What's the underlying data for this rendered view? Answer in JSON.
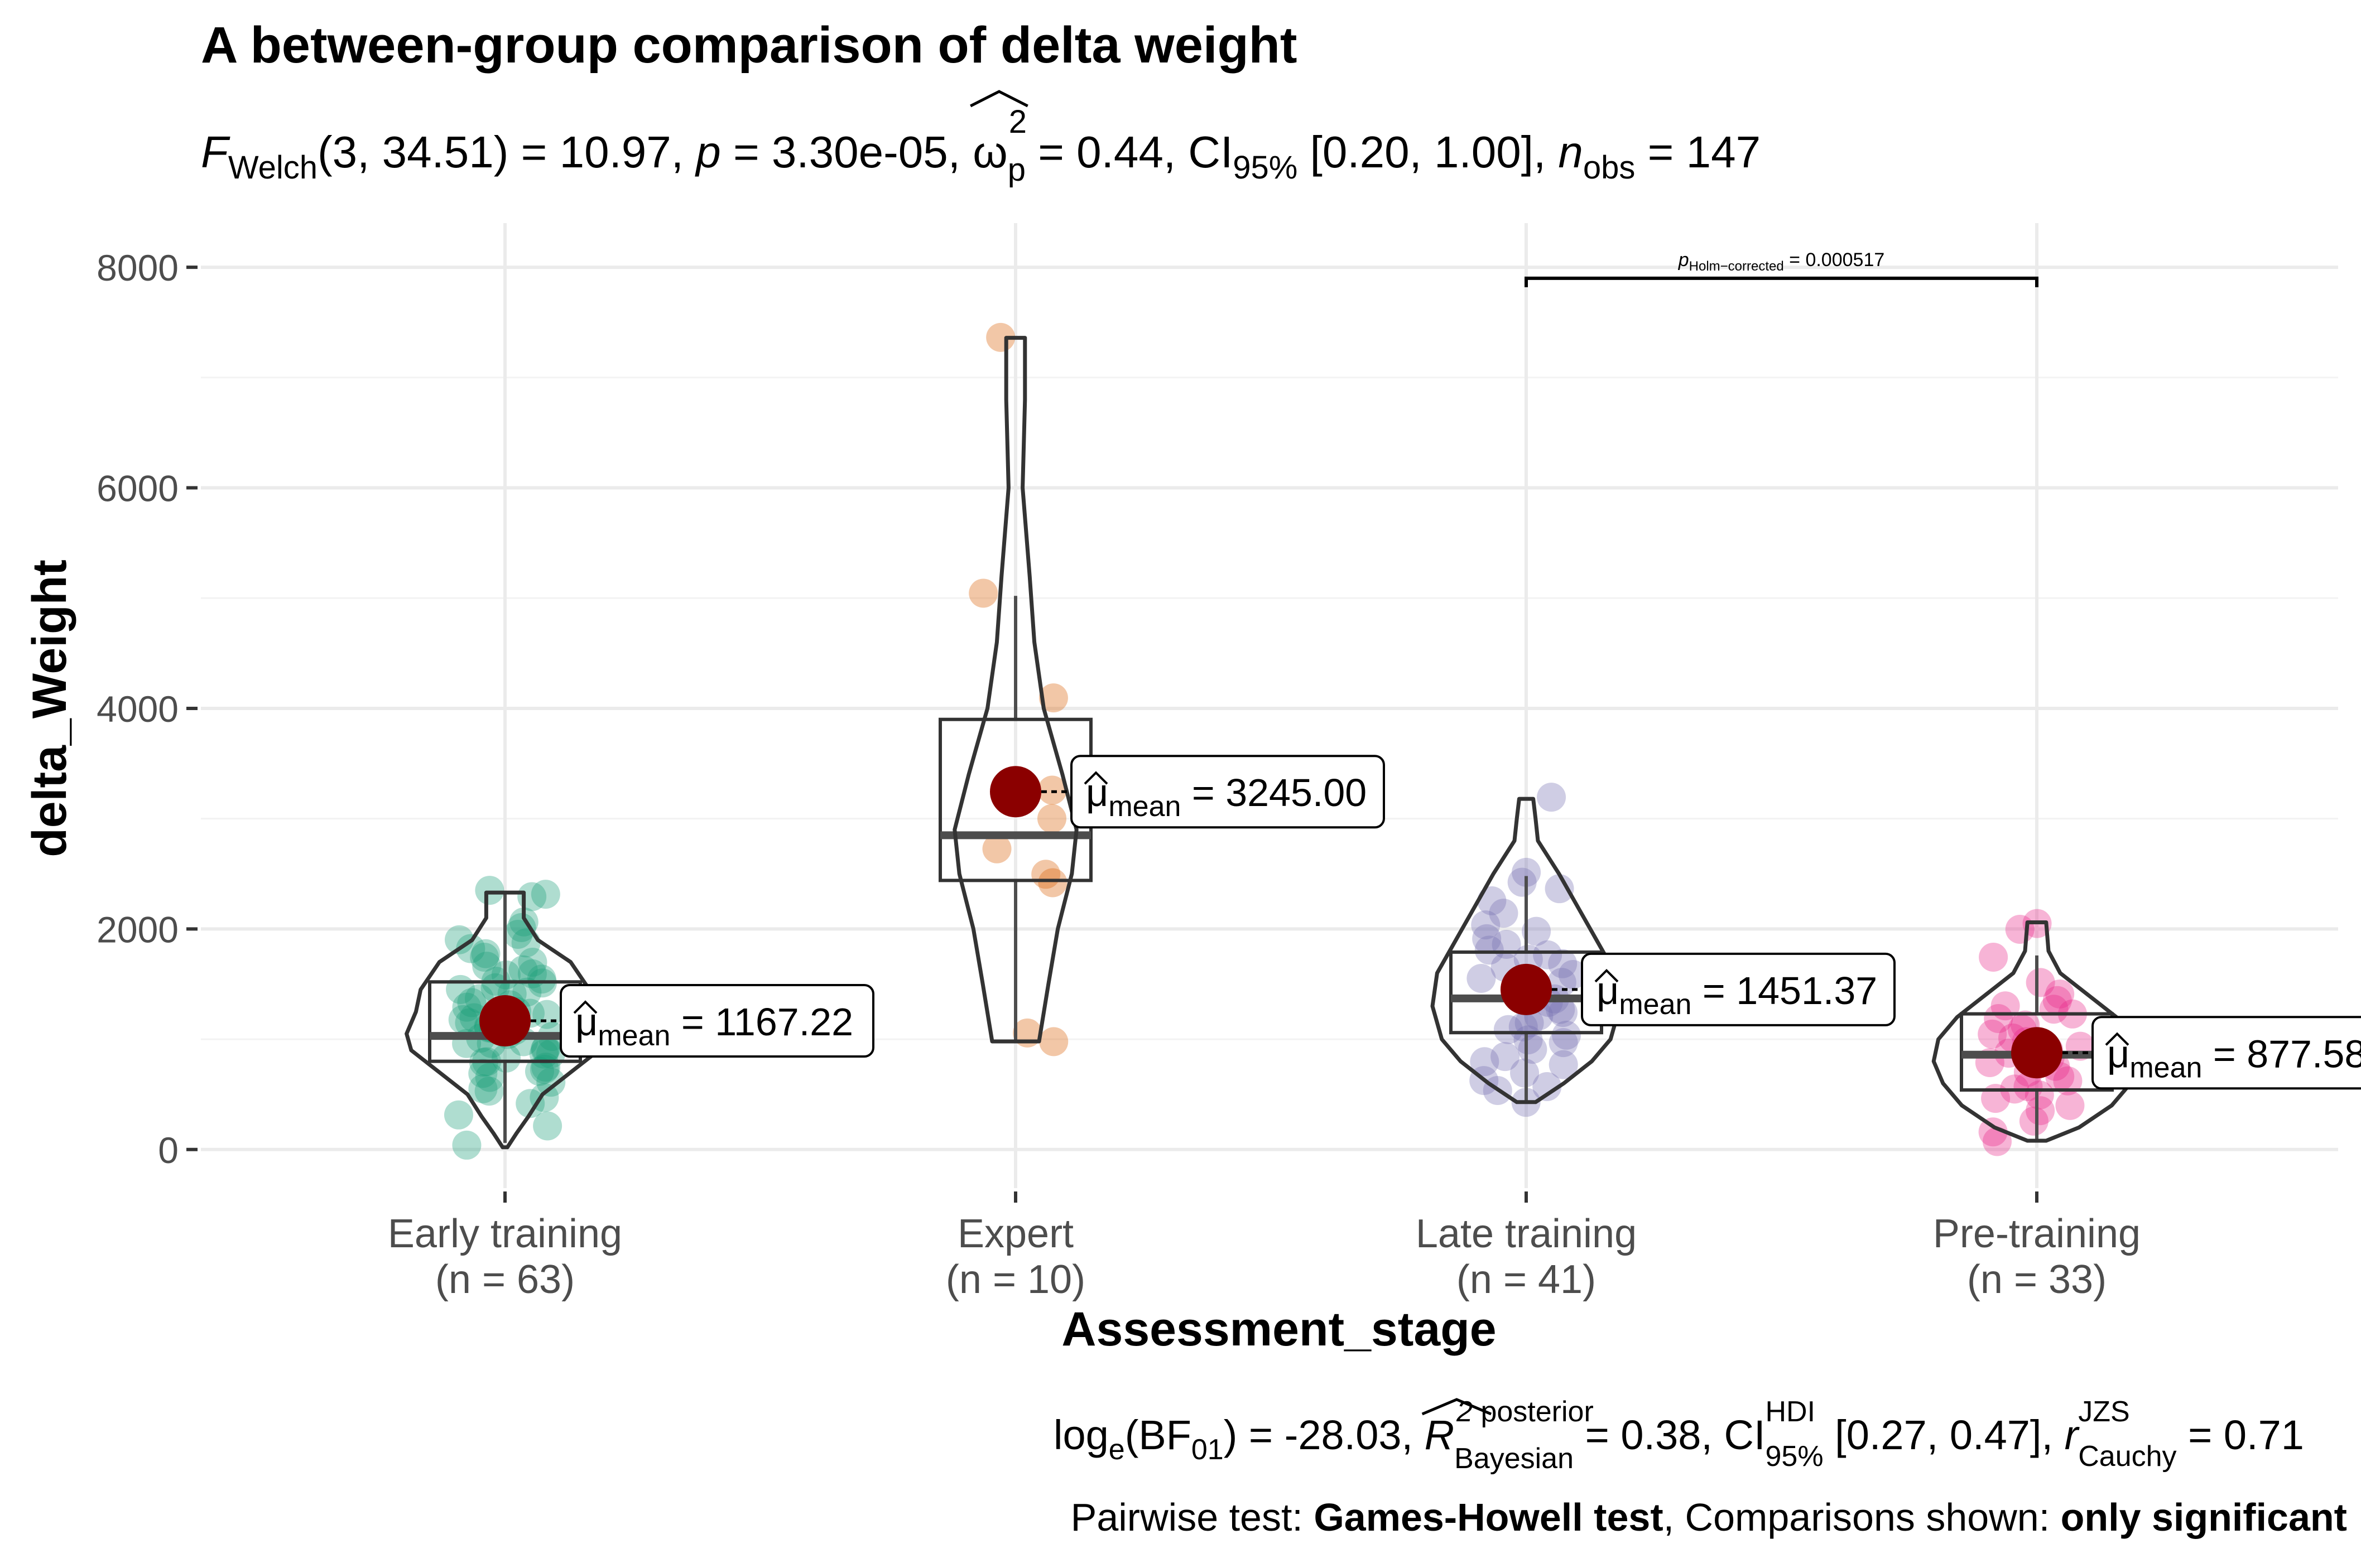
{
  "chart_data": {
    "type": "violin-box-scatter",
    "title": "A between-group comparison of delta weight",
    "subtitle": {
      "f_sym": "F",
      "f_sub": "Welch",
      "df": "3, 34.51",
      "f_val": "= 10.97,",
      "p_sym": "p",
      "p_val": "= 3.30e-05,",
      "omega_sym": "ω",
      "omega_sup": "2",
      "omega_sub": "p",
      "omega_val": "= 0.44, CI",
      "ci_sub": "95%",
      "ci_val": "[0.20, 1.00],",
      "n_sym": "n",
      "n_sub": "obs",
      "n_val": "= 147"
    },
    "xlabel": "Assessment_stage",
    "ylabel": "delta_Weight",
    "ylim": [
      -350,
      8400
    ],
    "yticks": [
      0,
      2000,
      4000,
      6000,
      8000
    ],
    "ytick_labels": [
      "0",
      "2000",
      "4000",
      "6000",
      "8000"
    ],
    "grid": true,
    "groups": [
      {
        "name": "Early training",
        "n_label": "(n = 63)",
        "color": "#1b9e77",
        "mean_label": "= 1167.22",
        "mean": 1167.22,
        "box": {
          "q1": 800,
          "median": 1030,
          "q3": 1520,
          "whisker_low": 60,
          "whisker_high": 2320
        },
        "violin": {
          "min": 20,
          "max": 2330,
          "profile": [
            [
              20,
              0.01
            ],
            [
              150,
              0.05
            ],
            [
              300,
              0.1
            ],
            [
              500,
              0.16
            ],
            [
              700,
              0.28
            ],
            [
              900,
              0.4
            ],
            [
              1050,
              0.42
            ],
            [
              1250,
              0.38
            ],
            [
              1450,
              0.36
            ],
            [
              1700,
              0.28
            ],
            [
              1900,
              0.14
            ],
            [
              2100,
              0.08
            ],
            [
              2330,
              0.08
            ]
          ]
        },
        "points": [
          50,
          200,
          300,
          420,
          480,
          520,
          560,
          600,
          640,
          680,
          700,
          720,
          760,
          800,
          820,
          860,
          880,
          900,
          920,
          950,
          980,
          1000,
          1020,
          1050,
          1080,
          1100,
          1120,
          1150,
          1180,
          1200,
          1220,
          1250,
          1280,
          1300,
          1330,
          1360,
          1400,
          1430,
          1460,
          1500,
          1530,
          1560,
          1590,
          1620,
          1660,
          1700,
          1740,
          1780,
          1820,
          1860,
          1900,
          1950,
          2000,
          2050,
          2300,
          2320,
          2340,
          1250,
          1100,
          950,
          800,
          1450,
          1600
        ]
      },
      {
        "name": "Expert",
        "n_label": "(n = 10)",
        "color": "#d95f02",
        "mean_label": "= 3245.00",
        "mean": 3245.0,
        "box": {
          "q1": 2440,
          "median": 2850,
          "q3": 3900,
          "whisker_low": 980,
          "whisker_high": 5020
        },
        "violin": {
          "min": 980,
          "max": 7360,
          "profile": [
            [
              980,
              0.1
            ],
            [
              1500,
              0.14
            ],
            [
              2000,
              0.18
            ],
            [
              2500,
              0.24
            ],
            [
              2900,
              0.26
            ],
            [
              3400,
              0.2
            ],
            [
              4000,
              0.12
            ],
            [
              4600,
              0.08
            ],
            [
              5200,
              0.06
            ],
            [
              6000,
              0.03
            ],
            [
              6800,
              0.04
            ],
            [
              7360,
              0.04
            ]
          ]
        },
        "points": [
          7370,
          5030,
          4100,
          3250,
          3000,
          2720,
          2500,
          2420,
          1070,
          970
        ]
      },
      {
        "name": "Late training",
        "n_label": "(n = 41)",
        "color": "#7570b3",
        "mean_label": "= 1451.37",
        "mean": 1451.37,
        "box": {
          "q1": 1060,
          "median": 1370,
          "q3": 1790,
          "whisker_low": 430,
          "whisker_high": 2480
        },
        "violin": {
          "min": 430,
          "max": 3180,
          "profile": [
            [
              430,
              0.04
            ],
            [
              600,
              0.16
            ],
            [
              800,
              0.28
            ],
            [
              1000,
              0.36
            ],
            [
              1300,
              0.4
            ],
            [
              1600,
              0.38
            ],
            [
              1900,
              0.3
            ],
            [
              2200,
              0.22
            ],
            [
              2500,
              0.14
            ],
            [
              2800,
              0.05
            ],
            [
              3000,
              0.04
            ],
            [
              3180,
              0.03
            ]
          ]
        },
        "points": [
          3200,
          2520,
          2430,
          2350,
          2250,
          2150,
          2050,
          1980,
          1900,
          1850,
          1800,
          1760,
          1720,
          1680,
          1640,
          1600,
          1560,
          1520,
          1480,
          1440,
          1400,
          1360,
          1320,
          1280,
          1240,
          1200,
          1160,
          1120,
          1080,
          1040,
          1000,
          960,
          900,
          850,
          800,
          760,
          700,
          640,
          580,
          520,
          440
        ]
      },
      {
        "name": "Pre-training",
        "n_label": "(n = 33)",
        "color": "#e7298a",
        "mean_label": "= 877.58",
        "mean": 877.58,
        "box": {
          "q1": 540,
          "median": 860,
          "q3": 1230,
          "whisker_low": 80,
          "whisker_high": 1760
        },
        "violin": {
          "min": 80,
          "max": 2060,
          "profile": [
            [
              80,
              0.04
            ],
            [
              200,
              0.18
            ],
            [
              400,
              0.32
            ],
            [
              600,
              0.4
            ],
            [
              800,
              0.44
            ],
            [
              1000,
              0.42
            ],
            [
              1200,
              0.34
            ],
            [
              1400,
              0.22
            ],
            [
              1600,
              0.1
            ],
            [
              1800,
              0.05
            ],
            [
              2060,
              0.04
            ]
          ]
        },
        "points": [
          2060,
          1990,
          1740,
          1520,
          1400,
          1350,
          1300,
          1260,
          1220,
          1180,
          1140,
          1100,
          1060,
          1020,
          980,
          940,
          900,
          860,
          820,
          780,
          740,
          700,
          660,
          620,
          580,
          540,
          500,
          450,
          400,
          340,
          260,
          150,
          80
        ]
      }
    ],
    "mean_label_prefix": "μ",
    "mean_label_sub": "mean",
    "comparison": {
      "from": 2,
      "to": 3,
      "y": 7900,
      "label_sym": "p",
      "label_sub": "Holm−corrected",
      "label_val": "= 0.000517"
    },
    "caption": {
      "bf_text_a": "log",
      "bf_text_a_sub": "e",
      "bf_text_b": "(BF",
      "bf_text_b_sub": "01",
      "bf_text_c": ") = -28.03,",
      "r2_sym": "R",
      "r2_sup": "2",
      "r2_sup2": "posterior",
      "r2_sub": "Bayesian",
      "r2_val": "= 0.38, CI",
      "ci_sup": "HDI",
      "ci_sub": "95%",
      "ci_val": "[0.27, 0.47],",
      "r_sym": "r",
      "r_sup": "JZS",
      "r_sub": "Cauchy",
      "r_val": "= 0.71",
      "pairwise_a": "Pairwise test: ",
      "pairwise_b": "Games-Howell test",
      "pairwise_c": ", Comparisons shown: ",
      "pairwise_d": "only significant"
    },
    "mean_color": "#8b0000"
  }
}
